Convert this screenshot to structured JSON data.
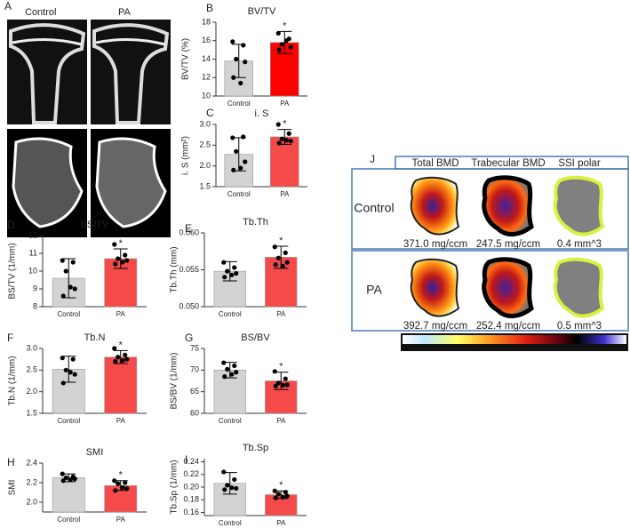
{
  "panel_a": {
    "label": "A",
    "columns": [
      "Control",
      "PA"
    ]
  },
  "chart_data": [
    {
      "type": "bar",
      "panel": "B",
      "title": "BV/TV",
      "y_label": "BV/TV (%)",
      "categories": [
        "Control",
        "PA"
      ],
      "values": [
        13.8,
        15.8
      ],
      "errors": [
        1.8,
        1.2
      ],
      "points": [
        [
          15.9,
          15.5,
          14.0,
          13.7,
          12.0,
          11.4
        ],
        [
          16.8,
          16.2,
          15.6,
          15.3,
          15.0,
          16.0
        ]
      ],
      "colors": [
        "#d3d3d3",
        "#ff0000"
      ],
      "annotation": "*",
      "ylim": [
        10,
        18
      ],
      "yticks": [
        10,
        12,
        14,
        16,
        18
      ]
    },
    {
      "type": "bar",
      "panel": "C",
      "title": "i. S",
      "y_label": "i. S (mm²)",
      "categories": [
        "Control",
        "PA"
      ],
      "values": [
        2.28,
        2.7
      ],
      "errors": [
        0.4,
        0.18
      ],
      "points": [
        [
          2.68,
          2.7,
          2.35,
          2.1,
          1.9,
          1.95
        ],
        [
          3.0,
          2.78,
          2.65,
          2.6,
          2.55,
          2.62
        ]
      ],
      "colors": [
        "#d3d3d3",
        "#f44a4a"
      ],
      "annotation": "*",
      "ylim": [
        1.5,
        3.0
      ],
      "yticks": [
        1.5,
        {
          "value": 2.0,
          "label": "2.0"
        },
        2.5,
        {
          "value": 3.0,
          "label": "3.0"
        }
      ]
    },
    {
      "type": "bar",
      "panel": "D",
      "title": "BS/TV",
      "y_label": "BS/TV (1/mm)",
      "categories": [
        "Control",
        "PA"
      ],
      "values": [
        9.6,
        10.7
      ],
      "errors": [
        1.1,
        0.55
      ],
      "points": [
        [
          10.6,
          10.5,
          10.0,
          9.0,
          8.6,
          9.1
        ],
        [
          11.5,
          10.9,
          10.7,
          10.6,
          10.4,
          10.5
        ]
      ],
      "colors": [
        "#d3d3d3",
        "#f44a4a"
      ],
      "annotation": "*",
      "ylim": [
        8,
        12
      ],
      "yticks": [
        8,
        9,
        10,
        11,
        12
      ]
    },
    {
      "type": "bar",
      "panel": "E",
      "title": "Tb.Th",
      "y_label": "Tb.Th (mm)",
      "categories": [
        "Control",
        "PA"
      ],
      "values": [
        0.0548,
        0.0567
      ],
      "errors": [
        0.0013,
        0.0015
      ],
      "points": [
        [
          0.056,
          0.0553,
          0.0548,
          0.0545,
          0.054,
          0.0543
        ],
        [
          0.0581,
          0.0573,
          0.0566,
          0.056,
          0.0557,
          0.0555
        ]
      ],
      "colors": [
        "#d3d3d3",
        "#f44a4a"
      ],
      "annotation": "*",
      "ylim": [
        0.05,
        0.06
      ],
      "yticks": [
        {
          "value": 0.05,
          "label": "0.050"
        },
        0.055,
        {
          "value": 0.06,
          "label": "0.060"
        }
      ]
    },
    {
      "type": "bar",
      "panel": "F",
      "title": "Tb.N",
      "y_label": "Tb.N (1/mm)",
      "categories": [
        "Control",
        "PA"
      ],
      "values": [
        2.52,
        2.8
      ],
      "errors": [
        0.3,
        0.15
      ],
      "points": [
        [
          2.78,
          2.75,
          2.5,
          2.4,
          2.2,
          2.45
        ],
        [
          3.0,
          2.85,
          2.8,
          2.75,
          2.7,
          2.72
        ]
      ],
      "colors": [
        "#d3d3d3",
        "#f44a4a"
      ],
      "annotation": "*",
      "ylim": [
        1.5,
        3.0
      ],
      "yticks": [
        1.5,
        {
          "value": 2.0,
          "label": "2.0"
        },
        2.5,
        {
          "value": 3.0,
          "label": "3.0"
        }
      ]
    },
    {
      "type": "bar",
      "panel": "G",
      "title": "BS/BV",
      "y_label": "BS/BV (1/mm)",
      "categories": [
        "Control",
        "PA"
      ],
      "values": [
        70,
        67.5
      ],
      "errors": [
        1.8,
        2.0
      ],
      "points": [
        [
          71.7,
          71.0,
          70.2,
          69.5,
          68.5,
          69.0
        ],
        [
          69.7,
          68.0,
          67.0,
          66.6,
          66.3,
          66.5
        ]
      ],
      "colors": [
        "#d3d3d3",
        "#f44a4a"
      ],
      "annotation": "*",
      "ylim": [
        60,
        75
      ],
      "yticks": [
        60,
        65,
        70,
        75
      ]
    },
    {
      "type": "bar",
      "panel": "H",
      "title": "SMI",
      "y_label": "SMI",
      "categories": [
        "Control",
        "PA"
      ],
      "values": [
        2.25,
        2.17
      ],
      "errors": [
        0.04,
        0.05
      ],
      "points": [
        [
          2.29,
          2.26,
          2.25,
          2.24,
          2.22,
          2.23
        ],
        [
          2.22,
          2.2,
          2.19,
          2.14,
          2.12,
          2.15
        ]
      ],
      "colors": [
        "#d3d3d3",
        "#f44a4a"
      ],
      "annotation": "*",
      "ylim": [
        1.9,
        2.4
      ],
      "yticks": [
        {
          "value": 2.0,
          "label": "2.0"
        },
        2.2,
        2.4
      ]
    },
    {
      "type": "bar",
      "panel": "I",
      "title": "Tb.Sp",
      "y_label": "Tb.Sp (1/mm)",
      "categories": [
        "Control",
        "PA"
      ],
      "values": [
        0.206,
        0.188
      ],
      "errors": [
        0.017,
        0.006
      ],
      "points": [
        [
          0.224,
          0.212,
          0.203,
          0.198,
          0.196,
          0.199
        ],
        [
          0.194,
          0.192,
          0.189,
          0.186,
          0.183,
          0.184
        ]
      ],
      "colors": [
        "#d3d3d3",
        "#f44a4a"
      ],
      "annotation": "*",
      "ylim": [
        0.155,
        0.245
      ],
      "yticks": [
        0.16,
        0.18,
        {
          "value": 0.2,
          "label": "0.20"
        },
        0.22,
        0.24
      ]
    }
  ],
  "panel_j": {
    "label": "J",
    "columns": [
      "Total BMD",
      "Trabecular BMD",
      "SSI polar"
    ],
    "rows": [
      {
        "name": "Control",
        "cells": [
          "371.0 mg/ccm",
          "247.5 mg/ccm",
          "0.4 mm^3"
        ]
      },
      {
        "name": "PA",
        "cells": [
          "392.7 mg/ccm",
          "252.4 mg/ccm",
          "0.5 mm^3"
        ]
      }
    ]
  }
}
